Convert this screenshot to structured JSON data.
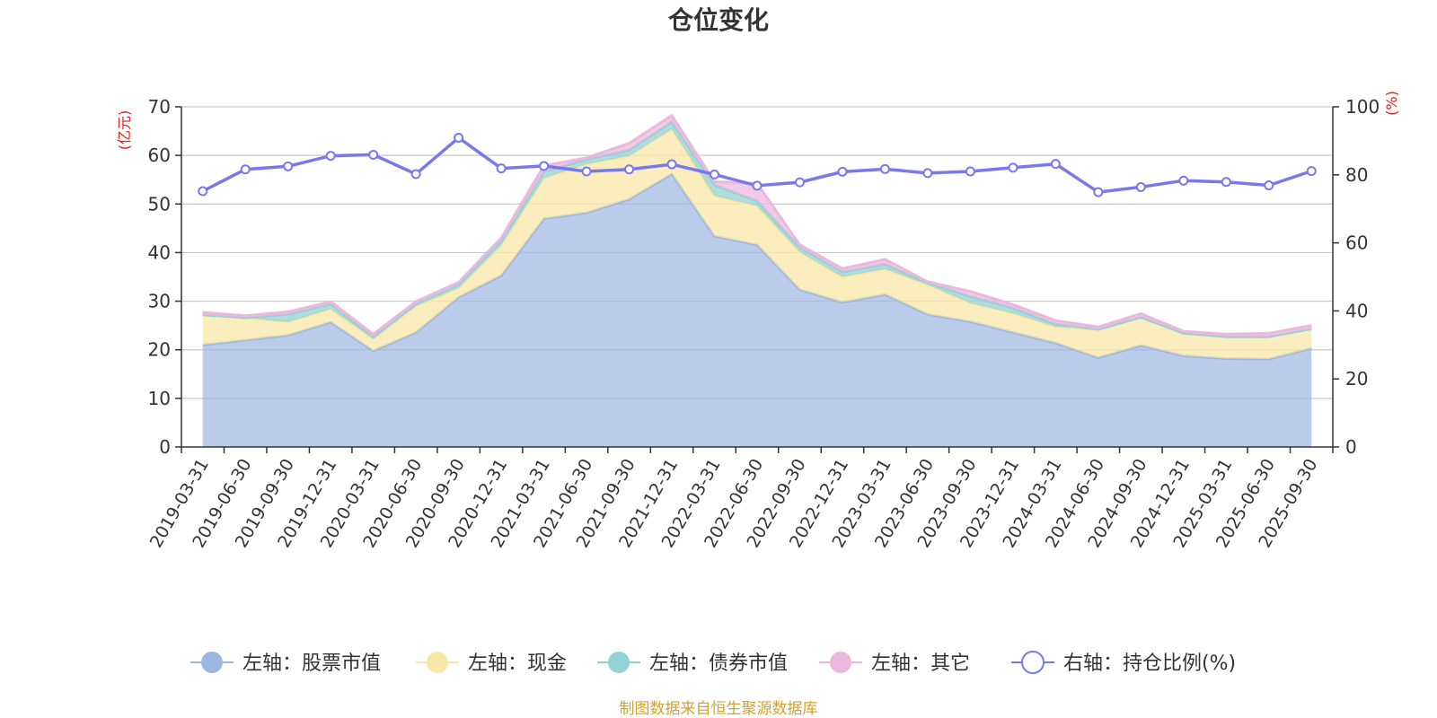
{
  "chart_data": {
    "type": "area",
    "title": "仓位变化",
    "left_unit": "(亿元)",
    "right_unit": "(%)",
    "left_ylim": [
      0,
      70
    ],
    "left_ticks": [
      "0",
      "10",
      "20",
      "30",
      "40",
      "50",
      "60",
      "70"
    ],
    "right_ylim": [
      0,
      100
    ],
    "right_ticks": [
      "0",
      "20",
      "40",
      "60",
      "80",
      "100"
    ],
    "categories": [
      "2019-03-31",
      "2019-06-30",
      "2019-09-30",
      "2019-12-31",
      "2020-03-31",
      "2020-06-30",
      "2020-09-30",
      "2020-12-31",
      "2021-03-31",
      "2021-06-30",
      "2021-09-30",
      "2021-12-31",
      "2022-03-31",
      "2022-06-30",
      "2022-09-30",
      "2022-12-31",
      "2023-03-31",
      "2023-06-30",
      "2023-09-30",
      "2023-12-31",
      "2024-03-31",
      "2024-06-30",
      "2024-09-30",
      "2024-12-31",
      "2025-03-31",
      "2025-06-30",
      "2025-09-30"
    ],
    "series": [
      {
        "name": "左轴：股票市值",
        "axis": "left",
        "stack": true,
        "color": "#9cb7e0",
        "values": [
          21.0,
          22.0,
          23.0,
          25.7,
          19.8,
          23.6,
          30.8,
          35.3,
          47.0,
          48.2,
          51.0,
          56.2,
          43.4,
          41.6,
          32.4,
          29.8,
          31.4,
          27.3,
          25.8,
          23.6,
          21.4,
          18.4,
          20.9,
          18.8,
          18.2,
          18.1,
          20.3
        ]
      },
      {
        "name": "左轴：现金",
        "axis": "left",
        "stack": true,
        "color": "#f9e7a7",
        "values": [
          6.2,
          4.6,
          2.7,
          2.7,
          2.4,
          5.4,
          1.9,
          6.2,
          8.3,
          10.0,
          8.9,
          9.2,
          8.3,
          8.0,
          7.7,
          5.2,
          5.2,
          6.1,
          3.8,
          3.9,
          3.3,
          5.8,
          5.8,
          4.6,
          4.5,
          4.6,
          4.0
        ]
      },
      {
        "name": "左轴：债券市值",
        "axis": "left",
        "stack": true,
        "color": "#92d2d4",
        "values": [
          0.0,
          0.0,
          1.6,
          1.0,
          0.5,
          0.5,
          0.8,
          1.0,
          1.3,
          1.0,
          1.2,
          1.5,
          2.2,
          1.0,
          1.0,
          1.0,
          1.0,
          0.4,
          1.4,
          1.1,
          0.6,
          0.0,
          0.0,
          0.0,
          0.0,
          0.0,
          0.0
        ]
      },
      {
        "name": "左轴：其它",
        "axis": "left",
        "stack": true,
        "color": "#ebb8dd",
        "values": [
          0.5,
          0.4,
          0.5,
          0.5,
          0.5,
          0.4,
          0.4,
          0.5,
          1.3,
          0.3,
          1.4,
          1.3,
          0.7,
          3.6,
          0.5,
          0.7,
          1.0,
          0.2,
          1.0,
          0.7,
          0.7,
          0.5,
          0.7,
          0.4,
          0.5,
          0.7,
          0.7
        ]
      },
      {
        "name": "右轴：持仓比例(%)",
        "axis": "right",
        "stack": false,
        "color": "#7979ee",
        "values": [
          75.2,
          81.6,
          82.5,
          85.6,
          85.9,
          80.2,
          90.9,
          81.9,
          82.6,
          81.0,
          81.6,
          83.1,
          80.1,
          76.8,
          77.8,
          80.9,
          81.7,
          80.5,
          81.0,
          82.1,
          83.2,
          74.9,
          76.4,
          78.3,
          77.9,
          76.9,
          81.1
        ]
      }
    ]
  },
  "source_text": "制图数据来自恒生聚源数据库",
  "colors": {
    "grid": "#c9c9c9",
    "axis": "#333333",
    "unit_red": "#e8191a",
    "source_gold": "#d0a334"
  }
}
